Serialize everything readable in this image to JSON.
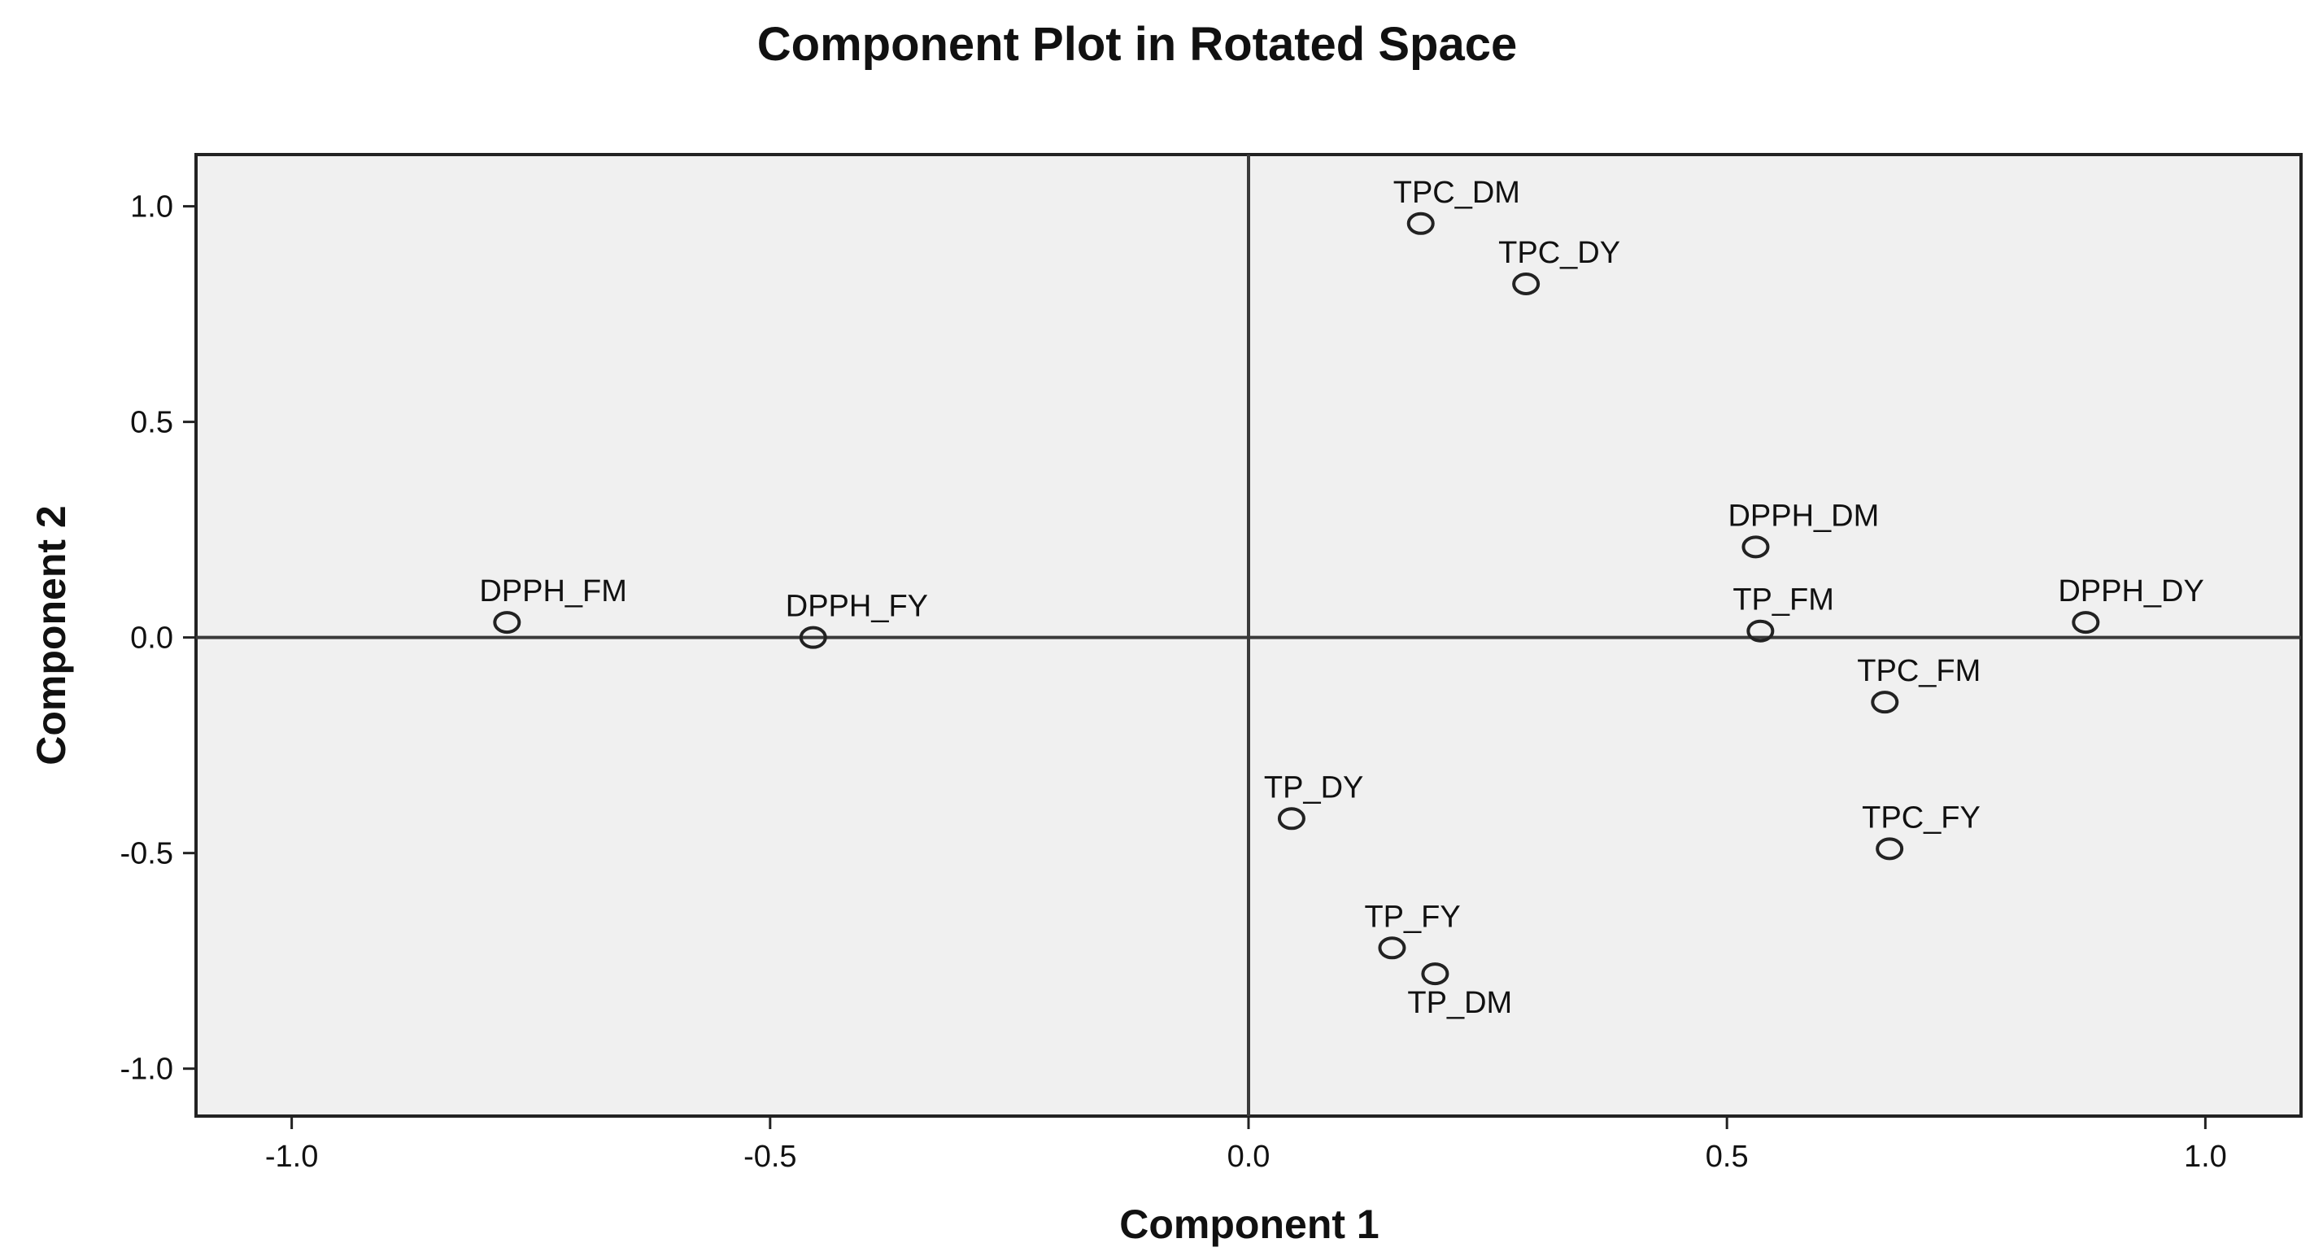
{
  "chart_data": {
    "type": "scatter",
    "title": "Component Plot in Rotated Space",
    "xlabel": "Component 1",
    "ylabel": "Component 2",
    "xlim": [
      -1.1,
      1.1
    ],
    "ylim": [
      -1.11,
      1.12
    ],
    "xticks": [
      -1.0,
      -0.5,
      0.0,
      0.5,
      1.0
    ],
    "xtick_labels": [
      "-1.0",
      "-0.5",
      "0.0",
      "0.5",
      "1.0"
    ],
    "yticks": [
      1.0,
      0.5,
      0.0,
      -0.5,
      -1.0
    ],
    "ytick_labels": [
      "1.0",
      "0.5",
      "0.0",
      "-0.5",
      "-1.0"
    ],
    "grid": false,
    "reference_lines": {
      "x": 0,
      "y": 0
    },
    "plot_background": "#f0f0f0",
    "marker": "open-circle",
    "points": [
      {
        "label": "TPC_DM",
        "x": 0.18,
        "y": 0.96,
        "label_pos": "above"
      },
      {
        "label": "TPC_DY",
        "x": 0.29,
        "y": 0.82,
        "label_pos": "above"
      },
      {
        "label": "DPPH_DM",
        "x": 0.53,
        "y": 0.21,
        "label_pos": "above"
      },
      {
        "label": "TP_FM",
        "x": 0.535,
        "y": 0.015,
        "label_pos": "above"
      },
      {
        "label": "DPPH_DY",
        "x": 0.875,
        "y": 0.035,
        "label_pos": "above"
      },
      {
        "label": "TPC_FM",
        "x": 0.665,
        "y": -0.15,
        "label_pos": "above"
      },
      {
        "label": "TPC_FY",
        "x": 0.67,
        "y": -0.49,
        "label_pos": "above"
      },
      {
        "label": "TP_DY",
        "x": 0.045,
        "y": -0.42,
        "label_pos": "above"
      },
      {
        "label": "TP_FY",
        "x": 0.15,
        "y": -0.72,
        "label_pos": "above"
      },
      {
        "label": "TP_DM",
        "x": 0.195,
        "y": -0.78,
        "label_pos": "below"
      },
      {
        "label": "DPPH_FM",
        "x": -0.775,
        "y": 0.035,
        "label_pos": "above"
      },
      {
        "label": "DPPH_FY",
        "x": -0.455,
        "y": 0.0,
        "label_pos": "above"
      }
    ]
  }
}
